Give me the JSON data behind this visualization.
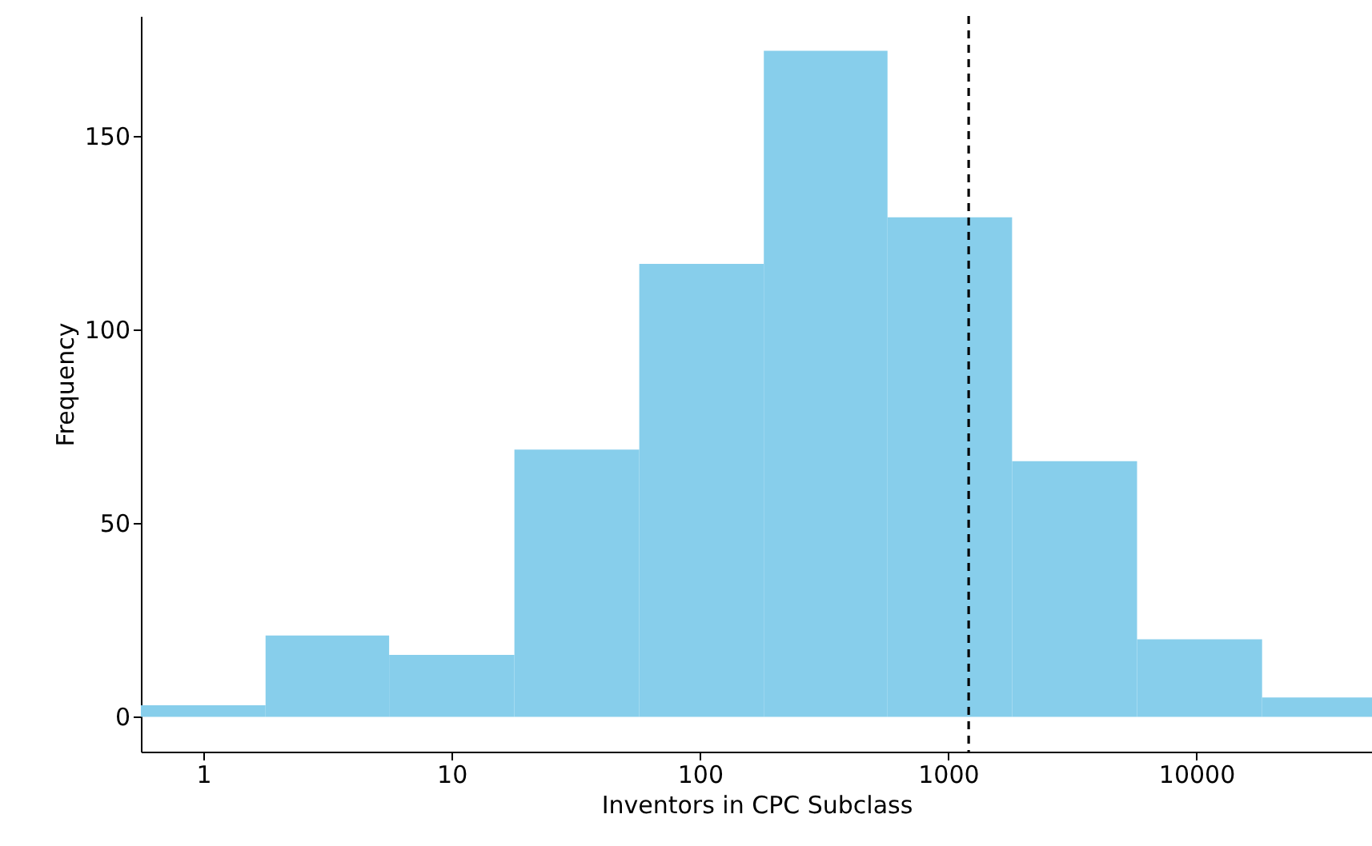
{
  "chart_data": {
    "type": "histogram",
    "xlabel": "Inventors in CPC Subclass",
    "ylabel": "Frequency",
    "bins": [
      0.56,
      1.78,
      5.6,
      17.9,
      57,
      181,
      570,
      1810,
      5770,
      18400,
      51000
    ],
    "values": [
      3,
      21,
      16,
      69,
      117,
      172,
      129,
      66,
      20,
      5
    ],
    "color": "#87ceeb",
    "log": "x",
    "xlim": [
      0.56,
      51000
    ],
    "xticks": [
      1,
      10,
      100,
      1000,
      10000
    ],
    "ylim": [
      -9,
      181
    ],
    "yticks": [
      0,
      50,
      100,
      150
    ],
    "ref_lines": [
      {
        "axis": "x",
        "value": 1210,
        "color": "#000000",
        "line_style": "dashed"
      }
    ],
    "grid": false
  }
}
